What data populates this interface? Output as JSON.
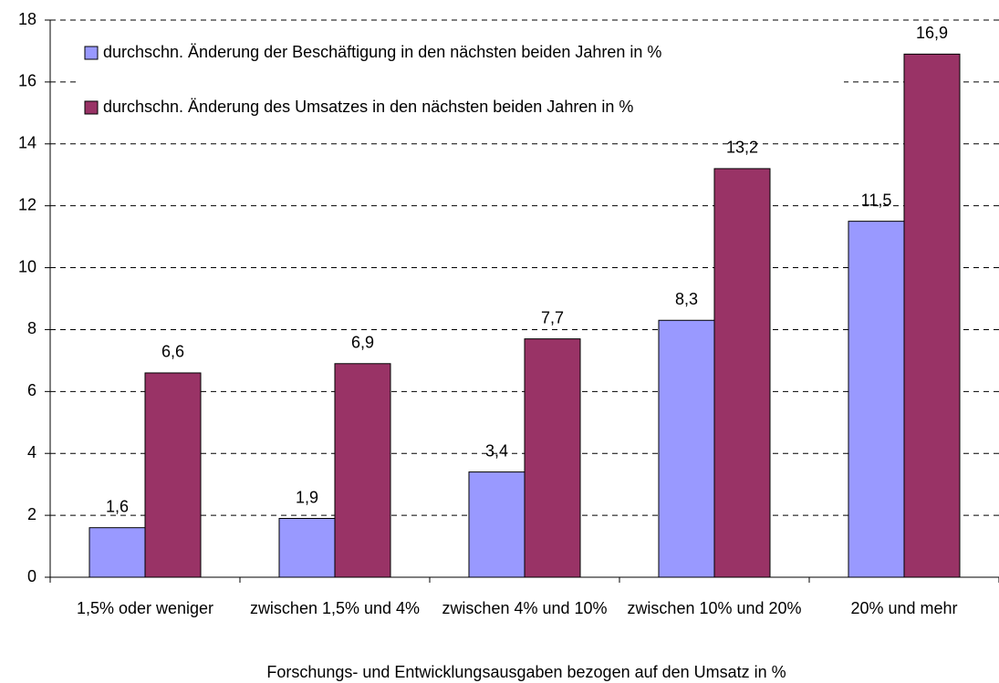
{
  "chart_data": {
    "type": "bar",
    "x_label": "Forschungs- und Entwicklungsausgaben bezogen auf den Umsatz in %",
    "categories": [
      "1,5% oder weniger",
      "zwischen 1,5% und 4%",
      "zwischen 4% und 10%",
      "zwischen 10% und 20%",
      "20% und mehr"
    ],
    "series": [
      {
        "name": "durchschn. Änderung der Beschäftigung in den nächsten beiden Jahren in %",
        "color": "#9999ff",
        "values": [
          1.6,
          1.9,
          3.4,
          8.3,
          11.5
        ],
        "value_labels": [
          "1,6",
          "1,9",
          "3,4",
          "8,3",
          "11,5"
        ]
      },
      {
        "name": "durchschn. Änderung des Umsatzes in den nächsten beiden Jahren in %",
        "color": "#993366",
        "values": [
          6.6,
          6.9,
          7.7,
          13.2,
          16.9
        ],
        "value_labels": [
          "6,6",
          "6,9",
          "7,7",
          "13,2",
          "16,9"
        ]
      }
    ],
    "ylim": [
      0,
      18
    ],
    "yticks": [
      0,
      2,
      4,
      6,
      8,
      10,
      12,
      14,
      16,
      18
    ],
    "grid": true
  }
}
